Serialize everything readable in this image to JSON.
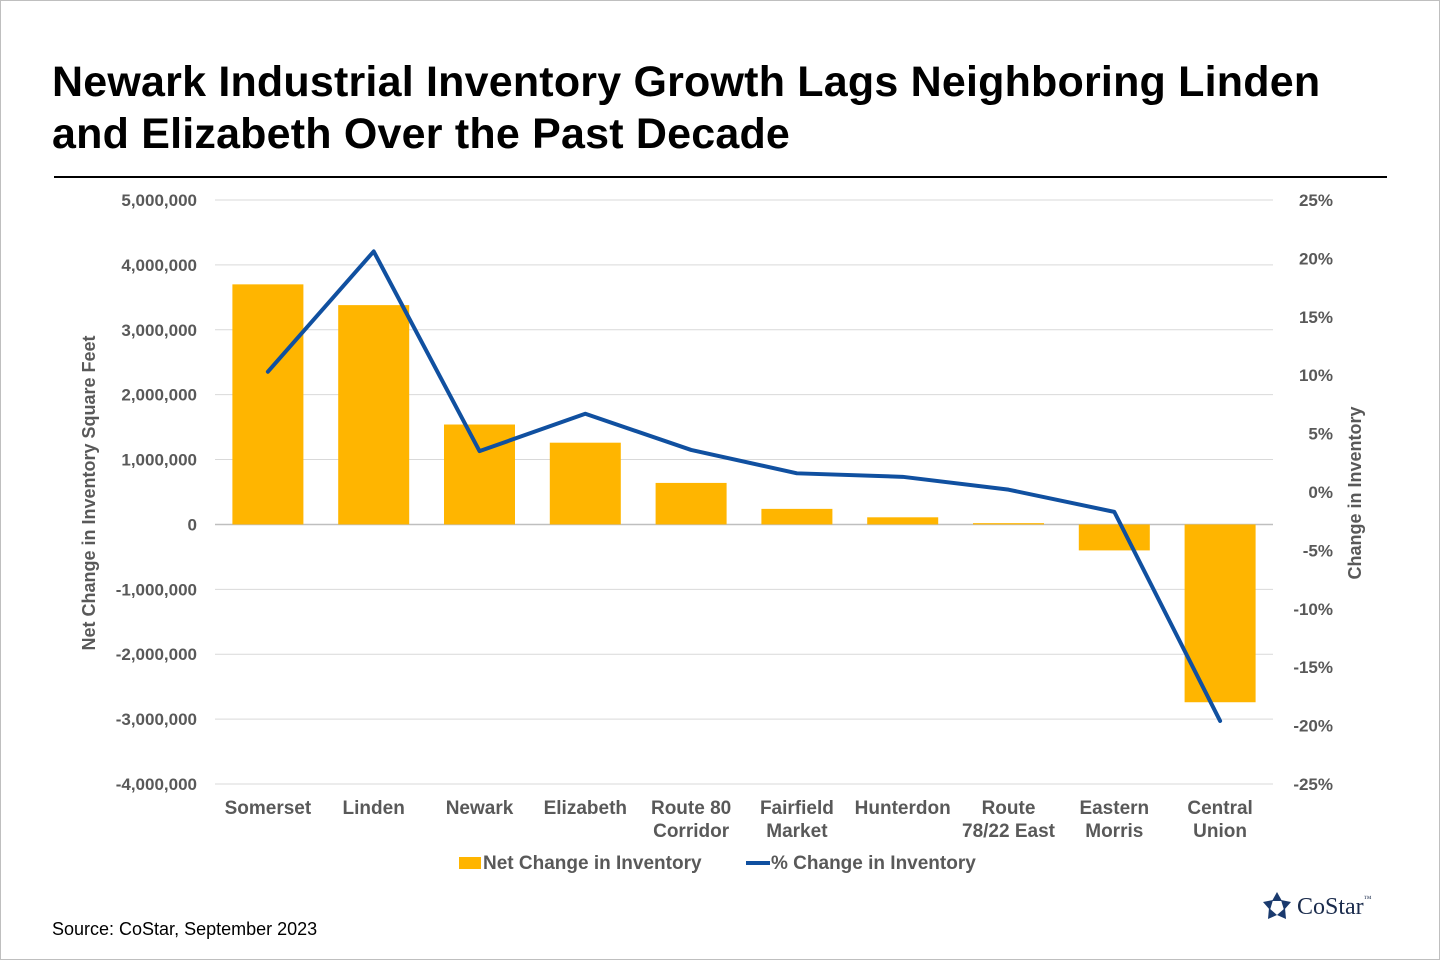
{
  "title": "Newark Industrial Inventory Growth Lags Neighboring Linden and Elizabeth Over the Past Decade",
  "source": "Source: CoStar, September 2023",
  "logo": {
    "text": "CoStar",
    "tm": "™",
    "icon": "costar-star-icon"
  },
  "colors": {
    "bar": "#FFB500",
    "line": "#1050A0",
    "grid": "#d9d9d9",
    "axis_text": "#595959"
  },
  "chart_data": {
    "type": "bar",
    "categories": [
      [
        "Somerset"
      ],
      [
        "Linden"
      ],
      [
        "Newark"
      ],
      [
        "Elizabeth"
      ],
      [
        "Route 80",
        "Corridor"
      ],
      [
        "Fairfield",
        "Market"
      ],
      [
        "Hunterdon"
      ],
      [
        "Route",
        "78/22 East"
      ],
      [
        "Eastern",
        "Morris"
      ],
      [
        "Central",
        "Union"
      ]
    ],
    "series": [
      {
        "name": "Net Change in Inventory",
        "type": "bar",
        "axis": "left",
        "values": [
          3700000,
          3380000,
          1540000,
          1260000,
          640000,
          240000,
          110000,
          20000,
          -400000,
          -2740000
        ]
      },
      {
        "name": "% Change in Inventory",
        "type": "line",
        "axis": "right",
        "values": [
          10.3,
          20.6,
          3.5,
          6.7,
          3.6,
          1.6,
          1.3,
          0.2,
          -1.7,
          -19.6
        ]
      }
    ],
    "y_left": {
      "label": "Net Change in Inventory Square Feet",
      "ylim": [
        -4000000,
        5000000
      ],
      "ticks": [
        "5,000,000",
        "4,000,000",
        "3,000,000",
        "2,000,000",
        "1,000,000",
        "0",
        "-1,000,000",
        "-2,000,000",
        "-3,000,000",
        "-4,000,000"
      ]
    },
    "y_right": {
      "label": "Change in Inventory",
      "ylim": [
        -25,
        25
      ],
      "ticks": [
        "25%",
        "20%",
        "15%",
        "10%",
        "5%",
        "0%",
        "-5%",
        "-10%",
        "-15%",
        "-20%",
        "-25%"
      ]
    },
    "grid": true,
    "legend": "bottom"
  }
}
